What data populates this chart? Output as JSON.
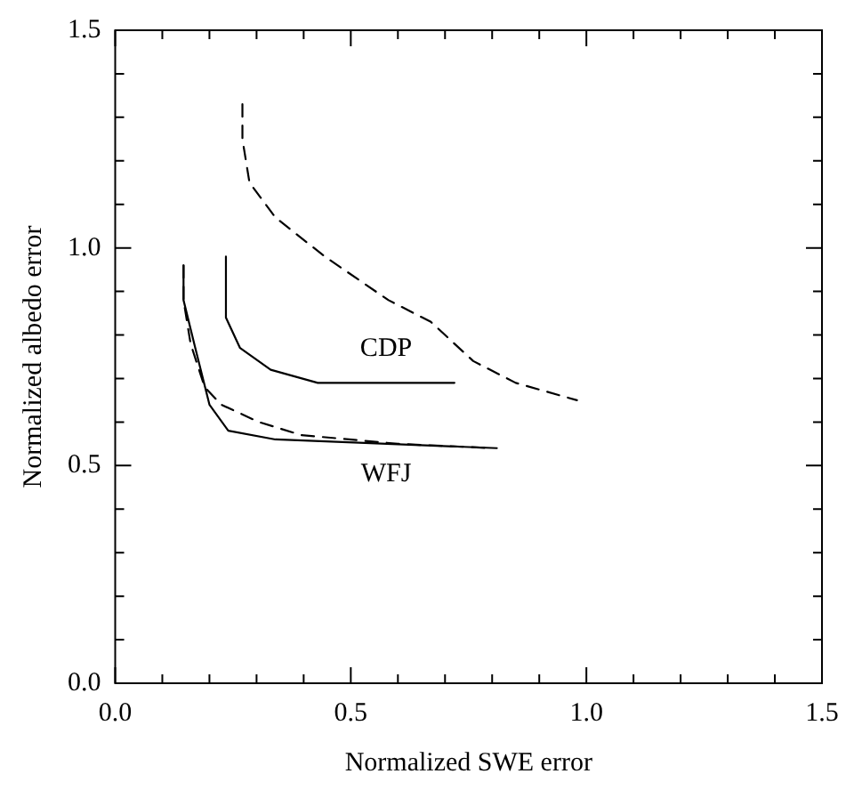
{
  "chart_data": {
    "type": "line",
    "xlabel": "Normalized SWE error",
    "ylabel": "Normalized albedo error",
    "xlim": [
      0,
      1.5
    ],
    "ylim": [
      0,
      1.5
    ],
    "xticks": [
      {
        "value": 0,
        "label": "0.0"
      },
      {
        "value": 0.1,
        "label": null
      },
      {
        "value": 0.2,
        "label": null
      },
      {
        "value": 0.3,
        "label": null
      },
      {
        "value": 0.4,
        "label": null
      },
      {
        "value": 0.5,
        "label": "0.5"
      },
      {
        "value": 0.6,
        "label": null
      },
      {
        "value": 0.7,
        "label": null
      },
      {
        "value": 0.8,
        "label": null
      },
      {
        "value": 0.9,
        "label": null
      },
      {
        "value": 1,
        "label": "1.0"
      },
      {
        "value": 1.1,
        "label": null
      },
      {
        "value": 1.2,
        "label": null
      },
      {
        "value": 1.3,
        "label": null
      },
      {
        "value": 1.4,
        "label": null
      },
      {
        "value": 1.5,
        "label": "1.5"
      }
    ],
    "yticks": [
      {
        "value": 0,
        "label": "0.0"
      },
      {
        "value": 0.1,
        "label": null
      },
      {
        "value": 0.2,
        "label": null
      },
      {
        "value": 0.3,
        "label": null
      },
      {
        "value": 0.4,
        "label": null
      },
      {
        "value": 0.5,
        "label": "0.5"
      },
      {
        "value": 0.6,
        "label": null
      },
      {
        "value": 0.7,
        "label": null
      },
      {
        "value": 0.8,
        "label": null
      },
      {
        "value": 0.9,
        "label": null
      },
      {
        "value": 1,
        "label": "1.0"
      },
      {
        "value": 1.1,
        "label": null
      },
      {
        "value": 1.2,
        "label": null
      },
      {
        "value": 1.3,
        "label": null
      },
      {
        "value": 1.4,
        "label": null
      },
      {
        "value": 1.5,
        "label": "1.5"
      }
    ],
    "grid": false,
    "legend": false,
    "marker": "none",
    "series": [
      {
        "color": "#000000",
        "line_style": "dashed",
        "x": [
          0.27,
          0.27,
          0.27,
          0.285,
          0.34,
          0.445,
          0.58,
          0.67,
          0.76,
          0.85,
          0.98
        ],
        "values": [
          1.33,
          1.29,
          1.25,
          1.15,
          1.07,
          0.98,
          0.88,
          0.83,
          0.74,
          0.69,
          0.65
        ]
      },
      {
        "name": "CDP",
        "color": "#000000",
        "line_style": "solid",
        "x": [
          0.235,
          0.235,
          0.265,
          0.33,
          0.43,
          0.72
        ],
        "values": [
          0.98,
          0.84,
          0.77,
          0.72,
          0.69,
          0.69
        ]
      },
      {
        "name": "WFJ",
        "color": "#000000",
        "line_style": "solid",
        "x": [
          0.145,
          0.145,
          0.17,
          0.2,
          0.24,
          0.34,
          0.81
        ],
        "values": [
          0.96,
          0.88,
          0.77,
          0.64,
          0.58,
          0.56,
          0.54
        ]
      },
      {
        "color": "#000000",
        "line_style": "dashed",
        "x": [
          0.145,
          0.145,
          0.16,
          0.19,
          0.225,
          0.305,
          0.395,
          0.6,
          0.8
        ],
        "values": [
          0.96,
          0.88,
          0.78,
          0.68,
          0.64,
          0.6,
          0.57,
          0.55,
          0.54
        ]
      }
    ]
  }
}
